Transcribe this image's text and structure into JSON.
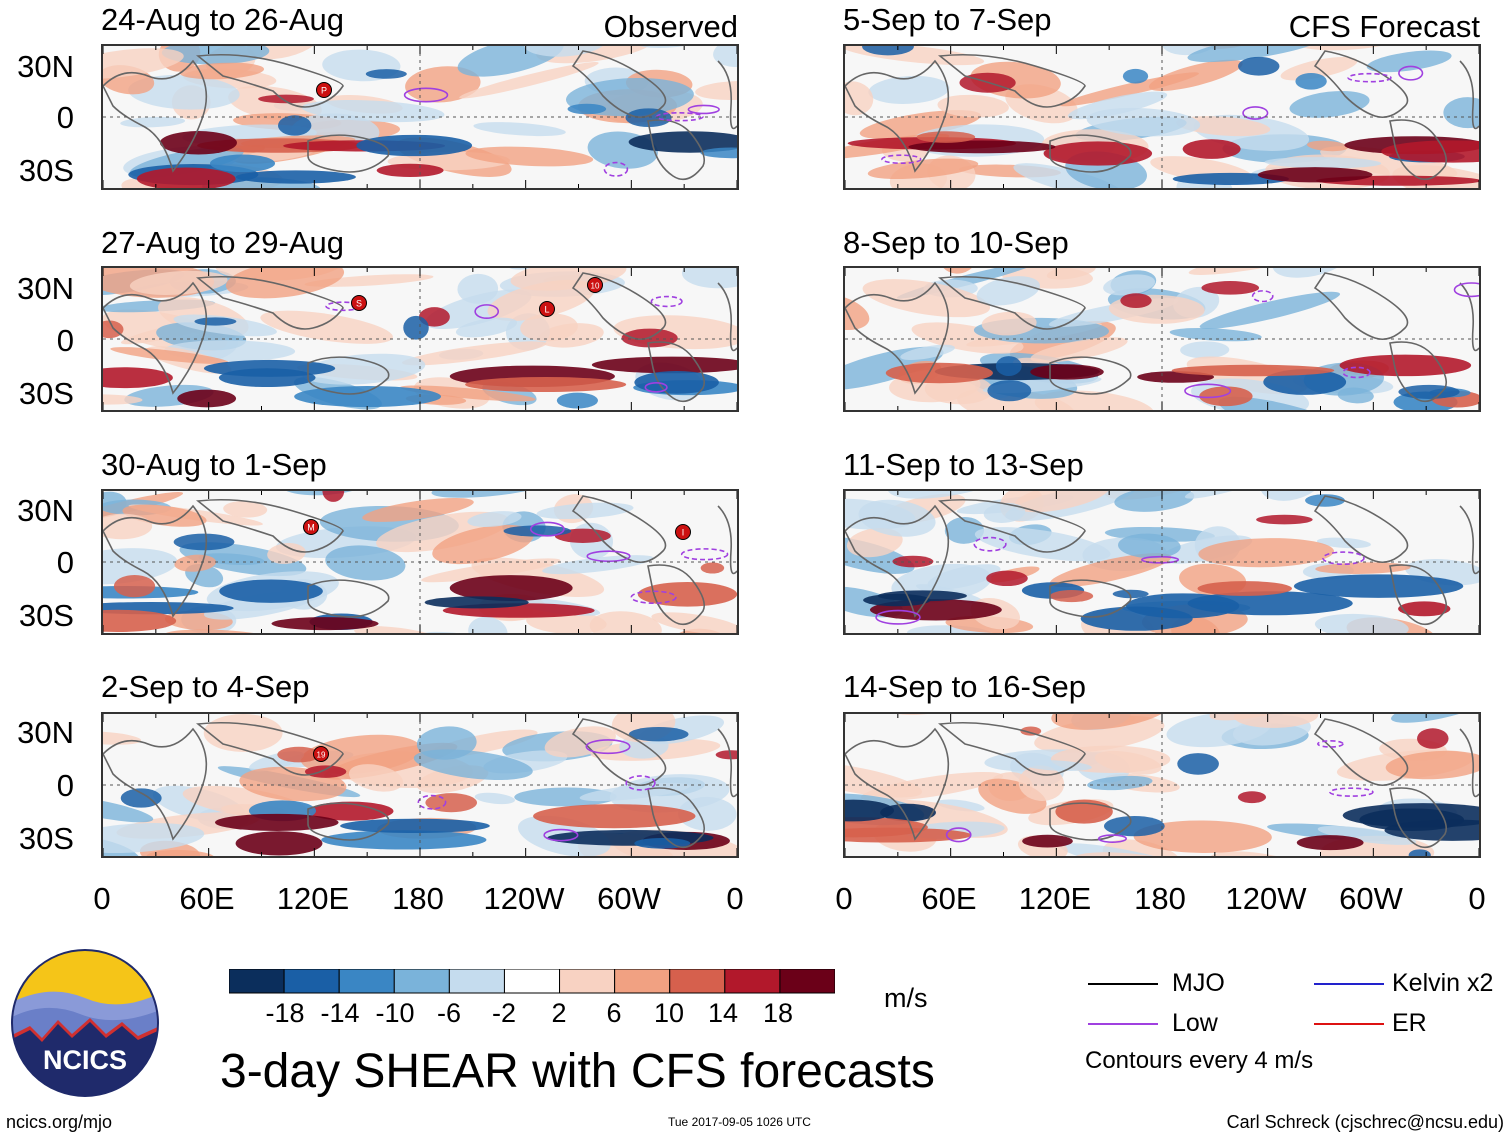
{
  "title": "3-day SHEAR with CFS forecasts",
  "left_column": {
    "label": "Observed",
    "panels": [
      {
        "title": "24-Aug to 26-Aug",
        "storms": [
          "P"
        ]
      },
      {
        "title": "27-Aug to 29-Aug",
        "storms": [
          "S",
          "L",
          "10"
        ]
      },
      {
        "title": "30-Aug to 1-Sep",
        "storms": [
          "M",
          "I"
        ]
      },
      {
        "title": "2-Sep to 4-Sep",
        "storms": [
          "19"
        ]
      }
    ]
  },
  "right_column": {
    "label": "CFS Forecast",
    "panels": [
      {
        "title": "5-Sep to 7-Sep"
      },
      {
        "title": "8-Sep to 10-Sep"
      },
      {
        "title": "11-Sep to 13-Sep"
      },
      {
        "title": "14-Sep to 16-Sep"
      }
    ]
  },
  "lat_labels": [
    "30N",
    "0",
    "30S"
  ],
  "lon_labels": [
    "0",
    "60E",
    "120E",
    "180",
    "120W",
    "60W",
    "0"
  ],
  "colorbar": {
    "unit": "m/s",
    "labels": [
      "-18",
      "-14",
      "-10",
      "-6",
      "-2",
      "2",
      "6",
      "10",
      "14",
      "18"
    ],
    "colors": [
      "#0b2e5c",
      "#1a5fa6",
      "#3a86c4",
      "#7ab3da",
      "#c5dcee",
      "#ffffff",
      "#f8d2c2",
      "#f1a182",
      "#d6604d",
      "#b2182b",
      "#6b0018"
    ]
  },
  "legend": {
    "items": [
      {
        "label": "MJO",
        "color": "#000000"
      },
      {
        "label": "Kelvin x2",
        "color": "#2222cc"
      },
      {
        "label": "Low",
        "color": "#a040e0"
      },
      {
        "label": "ER",
        "color": "#dd1111"
      }
    ],
    "note": "Contours every 4 m/s"
  },
  "logo": {
    "text": "NCICS",
    "colors": {
      "navy": "#1f2a6b",
      "sun": "#f5c518",
      "mountain": "#6a7fc8",
      "ridge": "#d03030"
    }
  },
  "footer": {
    "url": "ncics.org/mjo",
    "timestamp": "Tue 2017-09-05 1026 UTC",
    "credit": "Carl Schreck (cjschrec@ncsu.edu)"
  }
}
